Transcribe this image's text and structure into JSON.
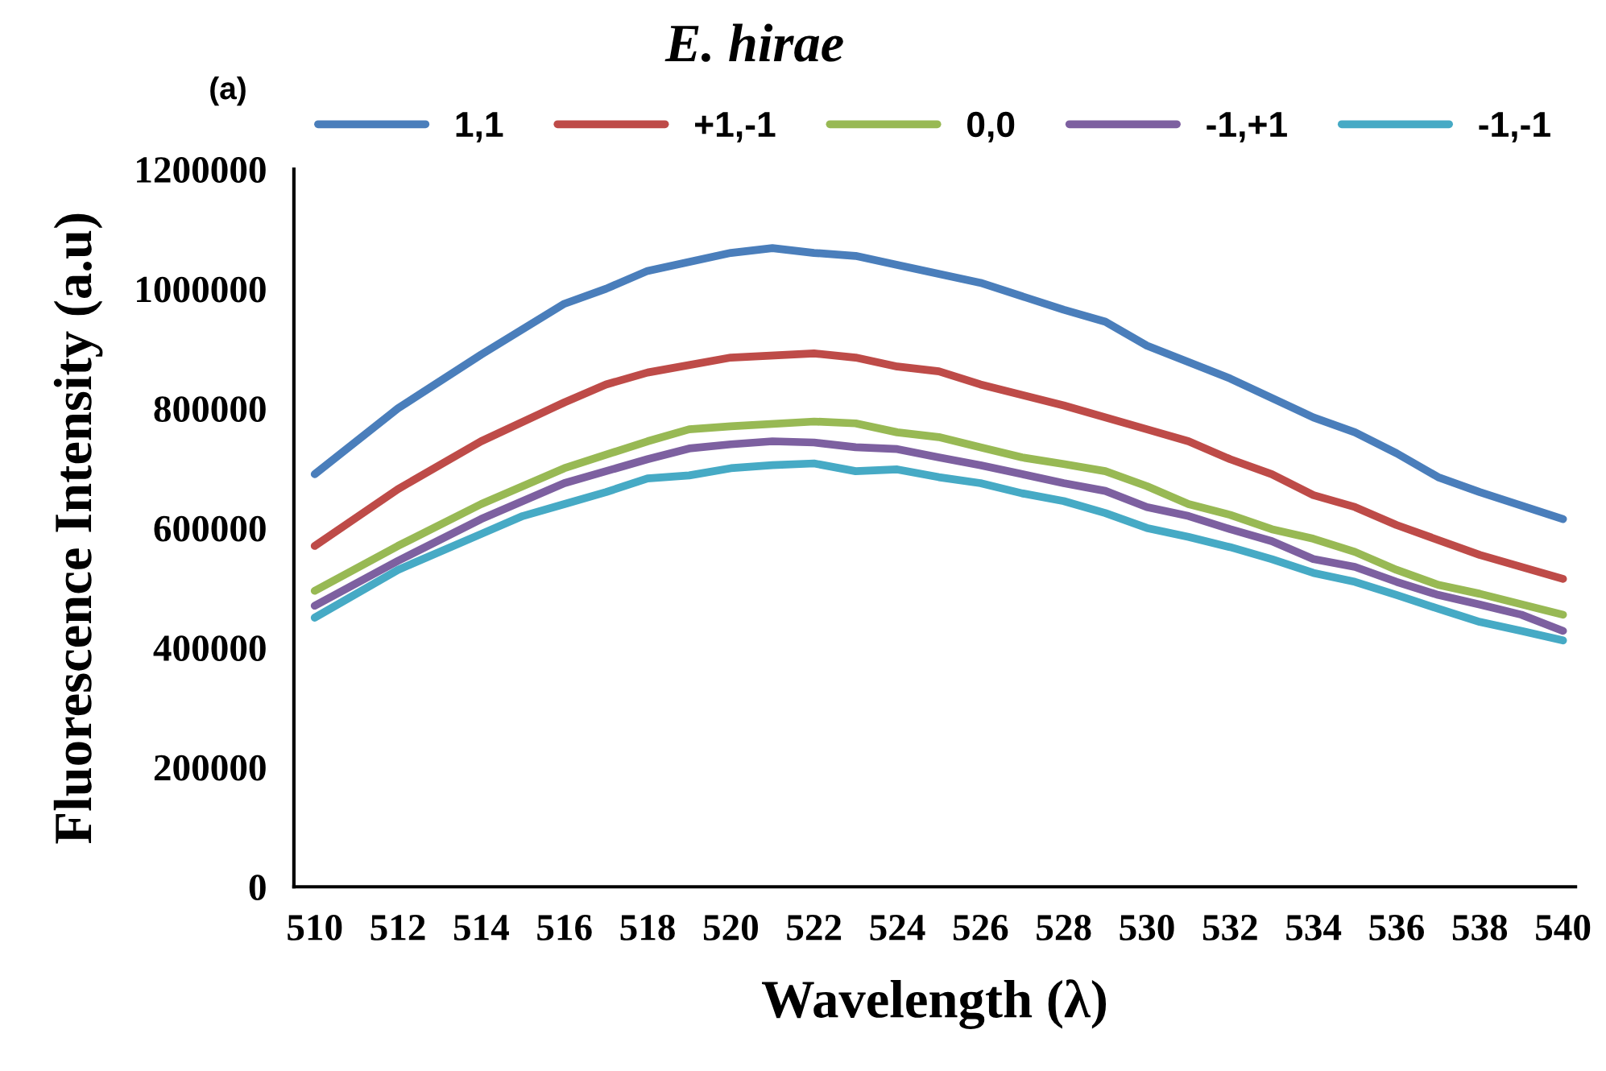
{
  "chart_data": {
    "type": "line",
    "title": "E. hirae",
    "annotations": [
      "(a)"
    ],
    "xlabel": "Wavelength (λ)",
    "ylabel": "Fluorescence Intensity (a.u)",
    "xlim": [
      509.5,
      540.3
    ],
    "xticks": [
      510,
      512,
      514,
      516,
      518,
      520,
      522,
      524,
      526,
      528,
      530,
      532,
      534,
      536,
      538,
      540
    ],
    "ylim": [
      0,
      1200000
    ],
    "yticks": [
      0,
      200000,
      400000,
      600000,
      800000,
      1000000,
      1200000
    ],
    "grid": false,
    "legend": "top",
    "marker": "none",
    "line_style": "solid",
    "series": [
      {
        "name": "1,1",
        "color": "#4a7ebb",
        "x": [
          510,
          512,
          514,
          516,
          517,
          518,
          520,
          521,
          522,
          523,
          524,
          526,
          528,
          529,
          530,
          532,
          534,
          535,
          536,
          537,
          538,
          540
        ],
        "values": [
          690000,
          800000,
          890000,
          975000,
          1000000,
          1030000,
          1060000,
          1068000,
          1060000,
          1055000,
          1040000,
          1010000,
          965000,
          945000,
          905000,
          850000,
          785000,
          760000,
          725000,
          685000,
          660000,
          615000
        ]
      },
      {
        "name": "+1,-1",
        "color": "#be4b48",
        "x": [
          510,
          512,
          514,
          516,
          517,
          518,
          520,
          522,
          523,
          524,
          525,
          526,
          528,
          530,
          531,
          532,
          533,
          534,
          535,
          536,
          538,
          540
        ],
        "values": [
          570000,
          665000,
          745000,
          810000,
          840000,
          860000,
          885000,
          892000,
          885000,
          870000,
          862000,
          840000,
          805000,
          765000,
          745000,
          715000,
          690000,
          655000,
          635000,
          605000,
          555000,
          515000
        ]
      },
      {
        "name": "0,0",
        "color": "#98b954",
        "x": [
          510,
          512,
          514,
          516,
          518,
          519,
          520,
          522,
          523,
          524,
          525,
          526,
          527,
          528,
          529,
          530,
          531,
          532,
          533,
          534,
          535,
          536,
          537,
          538,
          540
        ],
        "values": [
          495000,
          570000,
          640000,
          700000,
          745000,
          765000,
          770000,
          778000,
          775000,
          760000,
          752000,
          735000,
          718000,
          707000,
          695000,
          670000,
          640000,
          622000,
          598000,
          582000,
          560000,
          530000,
          505000,
          490000,
          455000
        ]
      },
      {
        "name": "-1,+1",
        "color": "#7d60a0",
        "x": [
          510,
          512,
          514,
          516,
          518,
          519,
          520,
          521,
          522,
          523,
          524,
          525,
          526,
          527,
          528,
          529,
          530,
          531,
          532,
          533,
          534,
          535,
          536,
          537,
          538,
          539,
          540
        ],
        "values": [
          470000,
          545000,
          615000,
          675000,
          715000,
          733000,
          740000,
          745000,
          743000,
          735000,
          732000,
          718000,
          705000,
          690000,
          675000,
          662000,
          635000,
          620000,
          598000,
          578000,
          548000,
          535000,
          510000,
          488000,
          472000,
          455000,
          428000
        ]
      },
      {
        "name": "-1,-1",
        "color": "#46aac5",
        "x": [
          510,
          512,
          514,
          515,
          516,
          517,
          518,
          519,
          520,
          521,
          522,
          523,
          524,
          525,
          526,
          527,
          528,
          529,
          530,
          531,
          532,
          533,
          534,
          535,
          536,
          537,
          538,
          539,
          540
        ],
        "values": [
          450000,
          530000,
          590000,
          620000,
          640000,
          660000,
          683000,
          688000,
          700000,
          705000,
          708000,
          695000,
          698000,
          685000,
          675000,
          658000,
          645000,
          625000,
          600000,
          585000,
          568000,
          548000,
          525000,
          510000,
          488000,
          465000,
          443000,
          428000,
          412000
        ]
      }
    ]
  }
}
